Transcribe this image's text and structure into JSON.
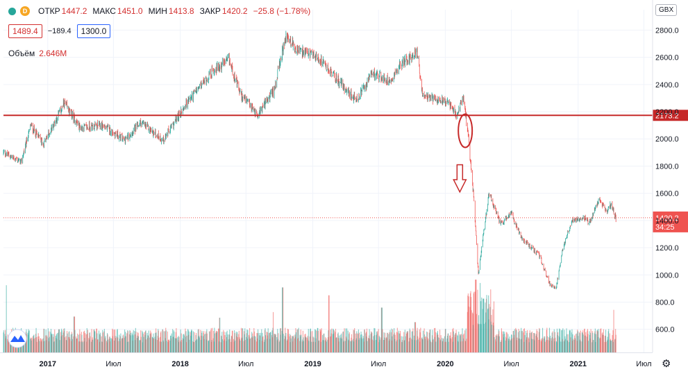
{
  "header": {
    "dot_color": "#26a69a",
    "d_badge": "D",
    "open_label": "ОТКР",
    "open_value": "1447.2",
    "high_label": "МАКС",
    "high_value": "1451.0",
    "low_label": "МИН",
    "low_value": "1413.8",
    "close_label": "ЗАКР",
    "close_value": "1420.2",
    "change": "−25.8 (−1.78%)"
  },
  "trade": {
    "sell_price": "1489.4",
    "spread": "−189.4",
    "buy_price": "1300.0"
  },
  "volume": {
    "label": "Объём",
    "value": "2.646M"
  },
  "currency": "GBX",
  "settings_icon": "gear-icon",
  "colors": {
    "up": "#26a69a",
    "down": "#ef5350",
    "level": "#c62828",
    "grid": "#f0f3fa"
  },
  "chart_data": {
    "type": "candlestick",
    "y_axis": {
      "min": 430,
      "max": 2950,
      "ticks": [
        600,
        800,
        1000,
        1200,
        1400,
        1600,
        1800,
        2000,
        2200,
        2400,
        2600,
        2800
      ],
      "tick_labels": [
        "600.0",
        "800.0",
        "1000.0",
        "1200.0",
        "1400.0",
        "1600.0",
        "1800.0",
        "2000.0",
        "2200.0",
        "2400.0",
        "2600.0",
        "2800.0"
      ]
    },
    "x_axis": {
      "start": "2016-09-01",
      "end": "2021-07-25",
      "labels": [
        {
          "date": "2017-01-01",
          "text": "2017",
          "bold": true
        },
        {
          "date": "2017-07-01",
          "text": "Июл",
          "bold": false
        },
        {
          "date": "2018-01-01",
          "text": "2018",
          "bold": true
        },
        {
          "date": "2018-07-01",
          "text": "Июл",
          "bold": false
        },
        {
          "date": "2019-01-01",
          "text": "2019",
          "bold": true
        },
        {
          "date": "2019-07-01",
          "text": "Июл",
          "bold": false
        },
        {
          "date": "2020-01-01",
          "text": "2020",
          "bold": true
        },
        {
          "date": "2020-07-01",
          "text": "Июл",
          "bold": false
        },
        {
          "date": "2021-01-01",
          "text": "2021",
          "bold": true
        },
        {
          "date": "2021-07-01",
          "text": "Июл",
          "bold": false
        }
      ]
    },
    "price_path": [
      [
        "2016-09-01",
        1900
      ],
      [
        "2016-10-20",
        1830
      ],
      [
        "2016-11-15",
        2100
      ],
      [
        "2016-12-20",
        1960
      ],
      [
        "2017-02-15",
        2260
      ],
      [
        "2017-04-01",
        2080
      ],
      [
        "2017-06-01",
        2100
      ],
      [
        "2017-08-01",
        1990
      ],
      [
        "2017-09-15",
        2120
      ],
      [
        "2017-11-15",
        1990
      ],
      [
        "2018-01-20",
        2270
      ],
      [
        "2018-04-01",
        2500
      ],
      [
        "2018-05-15",
        2580
      ],
      [
        "2018-06-15",
        2330
      ],
      [
        "2018-08-01",
        2180
      ],
      [
        "2018-09-15",
        2350
      ],
      [
        "2018-10-20",
        2760
      ],
      [
        "2018-11-20",
        2650
      ],
      [
        "2019-01-15",
        2600
      ],
      [
        "2019-03-15",
        2420
      ],
      [
        "2019-05-01",
        2280
      ],
      [
        "2019-06-15",
        2480
      ],
      [
        "2019-08-01",
        2430
      ],
      [
        "2019-09-01",
        2550
      ],
      [
        "2019-10-15",
        2640
      ],
      [
        "2019-11-01",
        2300
      ],
      [
        "2019-12-15",
        2300
      ],
      [
        "2020-01-15",
        2250
      ],
      [
        "2020-02-01",
        2160
      ],
      [
        "2020-02-20",
        2310
      ],
      [
        "2020-03-05",
        2000
      ],
      [
        "2020-03-20",
        1550
      ],
      [
        "2020-04-01",
        1000
      ],
      [
        "2020-04-15",
        1300
      ],
      [
        "2020-05-01",
        1600
      ],
      [
        "2020-06-01",
        1370
      ],
      [
        "2020-07-01",
        1450
      ],
      [
        "2020-08-01",
        1260
      ],
      [
        "2020-09-15",
        1150
      ],
      [
        "2020-10-15",
        930
      ],
      [
        "2020-11-01",
        900
      ],
      [
        "2020-11-20",
        1200
      ],
      [
        "2020-12-15",
        1400
      ],
      [
        "2021-01-15",
        1430
      ],
      [
        "2021-02-01",
        1380
      ],
      [
        "2021-03-01",
        1560
      ],
      [
        "2021-03-20",
        1460
      ],
      [
        "2021-04-01",
        1520
      ],
      [
        "2021-04-15",
        1420
      ]
    ],
    "volume_max": 7000000,
    "volume_spikes": [
      [
        "2016-09-10",
        6000000
      ],
      [
        "2017-03-15",
        3200000
      ],
      [
        "2018-04-20",
        3100000
      ],
      [
        "2018-09-15",
        3600000
      ],
      [
        "2018-10-10",
        5800000
      ],
      [
        "2019-02-15",
        5100000
      ],
      [
        "2019-07-10",
        4000000
      ],
      [
        "2019-10-10",
        2700000
      ],
      [
        "2020-03-25",
        6500000
      ],
      [
        "2020-04-05",
        6200000
      ],
      [
        "2020-04-15",
        4800000
      ],
      [
        "2021-04-10",
        3800000
      ]
    ],
    "horizontal_level": {
      "value": 2173.2,
      "label": "2173.2"
    },
    "last_price": {
      "value": 1420.2,
      "label": "1420.2",
      "countdown": "34:25"
    },
    "annotations": [
      {
        "type": "ellipse",
        "date": "2020-02-25",
        "price": 2060
      },
      {
        "type": "arrow-down",
        "date": "2020-02-10",
        "from": 1810,
        "to": 1610
      }
    ]
  }
}
